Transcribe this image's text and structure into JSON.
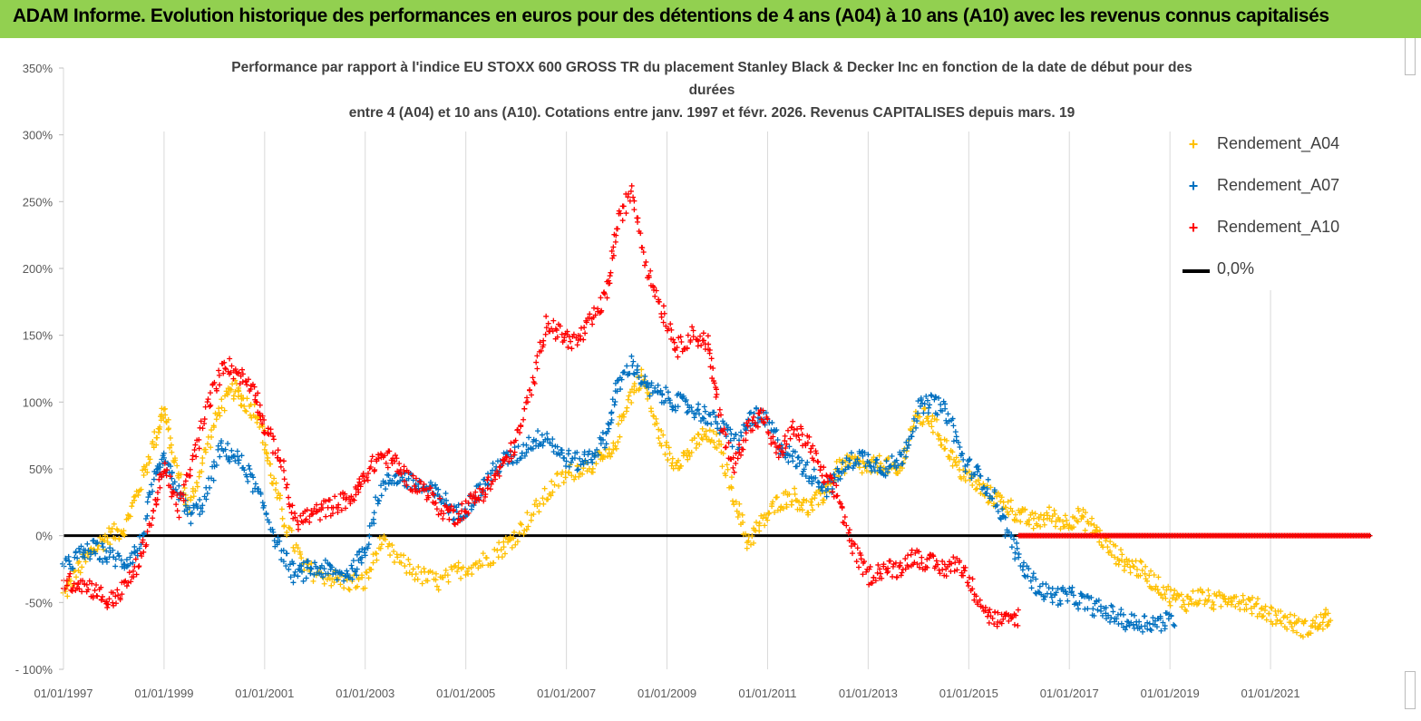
{
  "header": {
    "title": "ADAM Informe. Evolution historique des performances en euros pour des détentions de 4 ans (A04) à 10 ans (A10) avec les revenus connus capitalisés"
  },
  "colors": {
    "header_bg": "#92d050",
    "a04": "#ffc000",
    "a07": "#0070c0",
    "a10": "#ff0000",
    "zero_line": "#000000"
  },
  "chart_data": {
    "type": "scatter",
    "title_lines": [
      "Performance par rapport à l'indice EU STOXX 600 GROSS TR  du placement Stanley Black & Decker Inc en fonction de la  date de début pour des",
      "durées",
      "entre 4 (A04) et 10 ans (A10).  Cotations entre janv. 1997 et févr. 2026. Revenus CAPITALISES depuis mars. 19"
    ],
    "ylim": [
      -100,
      350
    ],
    "y_ticks": [
      -100,
      -50,
      0,
      50,
      100,
      150,
      200,
      250,
      300,
      350
    ],
    "y_tick_labels": [
      "- 100%",
      "-50%",
      "0%",
      "50%",
      "100%",
      "150%",
      "200%",
      "250%",
      "300%",
      "350%"
    ],
    "xlim": [
      1997.0,
      2023.0
    ],
    "x_ticks": [
      1997,
      1999,
      2001,
      2003,
      2005,
      2007,
      2009,
      2011,
      2013,
      2015,
      2017,
      2019,
      2021
    ],
    "x_tick_labels": [
      "01/01/1997",
      "01/01/1999",
      "01/01/2001",
      "01/01/2003",
      "01/01/2005",
      "01/01/2007",
      "01/01/2009",
      "01/01/2011",
      "01/01/2013",
      "01/01/2015",
      "01/01/2017",
      "01/01/2019",
      "01/01/2021"
    ],
    "legend": {
      "position": "right",
      "entries": [
        "Rendement_A04",
        "Rendement_A07",
        "Rendement_A10",
        "0,0%"
      ]
    },
    "series": [
      {
        "name": "Rendement_A04",
        "color": "#ffc000",
        "x": [
          1997.0,
          1997.3,
          1997.6,
          1997.9,
          1998.2,
          1998.5,
          1998.8,
          1999.0,
          1999.2,
          1999.5,
          1999.8,
          2000.1,
          2000.4,
          2000.6,
          2000.9,
          2001.1,
          2001.4,
          2001.8,
          2002.2,
          2002.6,
          2003.0,
          2003.3,
          2003.7,
          2004.1,
          2004.5,
          2004.9,
          2005.3,
          2005.7,
          2006.0,
          2006.4,
          2006.8,
          2007.2,
          2007.6,
          2007.9,
          2008.2,
          2008.5,
          2008.8,
          2009.1,
          2009.4,
          2009.7,
          2010.0,
          2010.3,
          2010.6,
          2010.9,
          2011.2,
          2011.5,
          2011.8,
          2012.1,
          2012.4,
          2012.7,
          2013.0,
          2013.3,
          2013.6,
          2013.9,
          2014.2,
          2014.5,
          2014.8,
          2015.1,
          2015.4,
          2015.7,
          2016.0,
          2016.3,
          2016.6,
          2016.9,
          2017.2,
          2017.5,
          2017.8,
          2018.1,
          2018.4,
          2018.7,
          2019.0,
          2019.3,
          2019.6,
          2019.9,
          2020.2,
          2020.5,
          2020.8,
          2021.1,
          2021.4,
          2021.7,
          2022.0,
          2022.2
        ],
        "y": [
          -45,
          -25,
          -10,
          0,
          5,
          35,
          70,
          95,
          55,
          20,
          60,
          95,
          110,
          100,
          90,
          50,
          10,
          -25,
          -30,
          -35,
          -35,
          -5,
          -20,
          -30,
          -35,
          -25,
          -20,
          -10,
          0,
          20,
          40,
          50,
          55,
          60,
          100,
          120,
          80,
          55,
          60,
          75,
          70,
          35,
          -5,
          10,
          25,
          30,
          20,
          30,
          50,
          55,
          50,
          55,
          45,
          85,
          90,
          70,
          50,
          40,
          30,
          25,
          15,
          10,
          15,
          10,
          15,
          5,
          -10,
          -20,
          -25,
          -35,
          -45,
          -50,
          -45,
          -50,
          -45,
          -50,
          -55,
          -60,
          -65,
          -70,
          -65,
          -60
        ]
      },
      {
        "name": "Rendement_A07",
        "color": "#0070c0",
        "x": [
          1997.0,
          1997.3,
          1997.6,
          1997.9,
          1998.2,
          1998.5,
          1998.8,
          1999.0,
          1999.2,
          1999.5,
          1999.8,
          2000.1,
          2000.4,
          2000.7,
          2001.0,
          2001.3,
          2001.6,
          2001.9,
          2002.2,
          2002.5,
          2002.8,
          2003.0,
          2003.3,
          2003.6,
          2003.9,
          2004.2,
          2004.5,
          2004.8,
          2005.1,
          2005.4,
          2005.7,
          2006.0,
          2006.3,
          2006.6,
          2006.9,
          2007.2,
          2007.5,
          2007.8,
          2008.0,
          2008.3,
          2008.6,
          2008.9,
          2009.2,
          2009.5,
          2009.8,
          2010.1,
          2010.4,
          2010.7,
          2011.0,
          2011.3,
          2011.6,
          2011.9,
          2012.2,
          2012.5,
          2012.8,
          2013.1,
          2013.4,
          2013.7,
          2014.0,
          2014.3,
          2014.6,
          2014.9,
          2015.2,
          2015.5,
          2015.8,
          2016.1,
          2016.4,
          2016.7,
          2017.0,
          2017.3,
          2017.6,
          2017.9,
          2018.2,
          2018.5,
          2018.8,
          2019.1
        ],
        "y": [
          -25,
          -15,
          -10,
          -15,
          -20,
          -10,
          40,
          55,
          40,
          15,
          25,
          65,
          60,
          45,
          20,
          -10,
          -30,
          -25,
          -25,
          -30,
          -25,
          -10,
          35,
          45,
          40,
          35,
          30,
          15,
          25,
          40,
          55,
          60,
          70,
          75,
          60,
          55,
          60,
          75,
          110,
          130,
          110,
          105,
          100,
          95,
          90,
          80,
          70,
          90,
          85,
          65,
          55,
          45,
          35,
          50,
          60,
          55,
          50,
          60,
          95,
          100,
          90,
          55,
          45,
          30,
          0,
          -25,
          -40,
          -45,
          -45,
          -50,
          -55,
          -60,
          -65,
          -65,
          -65,
          -63
        ]
      },
      {
        "name": "Rendement_A10",
        "color": "#ff0000",
        "x": [
          1997.0,
          1997.3,
          1997.6,
          1997.9,
          1998.2,
          1998.5,
          1998.8,
          1999.0,
          1999.3,
          1999.6,
          1999.9,
          2000.2,
          2000.5,
          2000.8,
          2001.0,
          2001.3,
          2001.6,
          2001.9,
          2002.2,
          2002.5,
          2002.8,
          2003.0,
          2003.3,
          2003.6,
          2003.9,
          2004.2,
          2004.5,
          2004.8,
          2005.1,
          2005.4,
          2005.7,
          2006.0,
          2006.3,
          2006.6,
          2006.9,
          2007.2,
          2007.5,
          2007.8,
          2008.0,
          2008.3,
          2008.6,
          2008.9,
          2009.2,
          2009.5,
          2009.8,
          2010.0,
          2010.3,
          2010.6,
          2010.9,
          2011.2,
          2011.5,
          2011.8,
          2012.1,
          2012.4,
          2012.7,
          2013.0,
          2013.3,
          2013.6,
          2013.9,
          2014.2,
          2014.5,
          2014.8,
          2015.1,
          2015.4,
          2015.7,
          2016.0
        ],
        "y": [
          -35,
          -35,
          -40,
          -50,
          -40,
          -20,
          20,
          50,
          20,
          60,
          100,
          130,
          120,
          110,
          80,
          60,
          10,
          15,
          20,
          25,
          30,
          45,
          60,
          55,
          40,
          35,
          20,
          15,
          25,
          35,
          50,
          70,
          110,
          160,
          150,
          145,
          160,
          180,
          230,
          260,
          200,
          170,
          140,
          150,
          145,
          100,
          50,
          80,
          90,
          60,
          80,
          70,
          45,
          30,
          -10,
          -30,
          -25,
          -25,
          -15,
          -20,
          -25,
          -20,
          -40,
          -60,
          -65,
          -60
        ]
      },
      {
        "name": "Rendement_A10_flat",
        "color": "#ff0000",
        "x": [
          2016.0,
          2023.0
        ],
        "y": [
          0,
          0
        ]
      }
    ]
  }
}
